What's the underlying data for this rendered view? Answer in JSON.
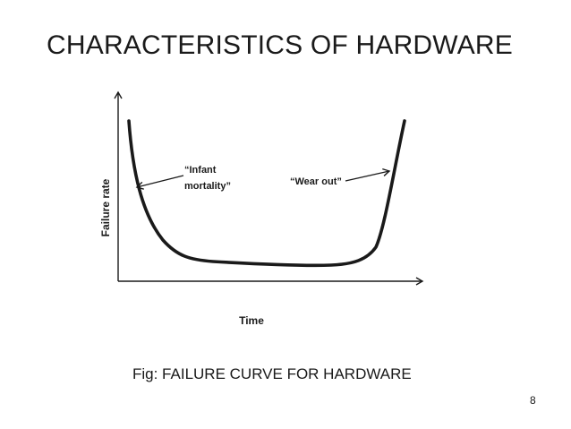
{
  "slide": {
    "title": "CHARACTERISTICS OF HARDWARE",
    "caption": "Fig: FAILURE CURVE FOR HARDWARE",
    "page_number": "8"
  },
  "diagram": {
    "y_axis_label": "Failure rate",
    "x_axis_label": "Time",
    "annotations": {
      "infant_line1": "“Infant",
      "infant_line2": "mortality”",
      "wear_out": "“Wear out”"
    },
    "line_color": "#1a1a1a"
  }
}
